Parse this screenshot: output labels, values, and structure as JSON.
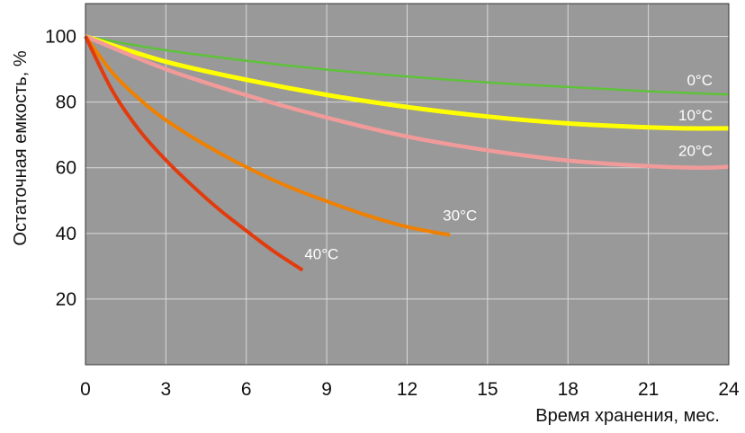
{
  "chart_data": {
    "type": "line",
    "title": "",
    "xlabel": "Время хранения, мес.",
    "ylabel": "Остаточная емкость, %",
    "xlim": [
      0,
      24
    ],
    "ylim": [
      0,
      110
    ],
    "xticks": [
      0,
      3,
      6,
      9,
      12,
      15,
      18,
      21,
      24
    ],
    "xtick_labels": [
      "0",
      "3",
      "6",
      "9",
      "12",
      "15",
      "18",
      "21",
      "24"
    ],
    "yticks": [
      20,
      40,
      60,
      80,
      100
    ],
    "ytick_labels": [
      "20",
      "40",
      "60",
      "80",
      "100"
    ],
    "grid": true,
    "plot_background": "#999999",
    "grid_color": "#d9d9d9",
    "series": [
      {
        "name": "0°C",
        "color": "#5ec23a",
        "x": [
          0,
          3,
          6,
          9,
          12,
          15,
          18,
          21,
          24
        ],
        "y": [
          100,
          95.8,
          92.6,
          89.9,
          87.8,
          86,
          84.6,
          83.3,
          82.3
        ]
      },
      {
        "name": "10°C",
        "color": "#ffff00",
        "x": [
          0,
          3,
          6,
          9,
          12,
          15,
          18,
          21,
          22.5,
          24
        ],
        "y": [
          100,
          92.3,
          86.8,
          82.2,
          78.5,
          75.6,
          73.5,
          72.3,
          72,
          72
        ]
      },
      {
        "name": "20°C",
        "color": "#f19a9a",
        "x": [
          0,
          3,
          6,
          9,
          12,
          15,
          18,
          21,
          23,
          24
        ],
        "y": [
          100,
          90,
          82.1,
          75.3,
          69.5,
          65.3,
          62.2,
          60.5,
          60,
          60.3
        ]
      },
      {
        "name": "30°C",
        "color": "#f08000",
        "x": [
          0,
          1,
          2,
          3,
          4.5,
          6,
          7.5,
          9,
          10.5,
          12,
          13.6
        ],
        "y": [
          100,
          89,
          81,
          74.5,
          66.8,
          60.2,
          54.5,
          49.8,
          45.5,
          42,
          39.5
        ]
      },
      {
        "name": "40°C",
        "color": "#e23b0e",
        "x": [
          0,
          1,
          2,
          3,
          4,
          5,
          6,
          7,
          8.1
        ],
        "y": [
          100,
          83.5,
          71.5,
          62.3,
          54.4,
          47.2,
          40.8,
          34.7,
          28.8
        ]
      }
    ]
  }
}
